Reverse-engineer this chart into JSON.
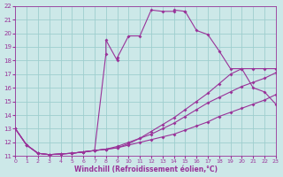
{
  "xlabel": "Windchill (Refroidissement éolien,°C)",
  "bg_color": "#cce8e8",
  "grid_color": "#9ecece",
  "line_color": "#993399",
  "xlim": [
    0,
    23
  ],
  "ylim": [
    11,
    22
  ],
  "xticks": [
    0,
    1,
    2,
    3,
    4,
    5,
    6,
    7,
    8,
    9,
    10,
    11,
    12,
    13,
    14,
    15,
    16,
    17,
    18,
    19,
    20,
    21,
    22,
    23
  ],
  "yticks": [
    11,
    12,
    13,
    14,
    15,
    16,
    17,
    18,
    19,
    20,
    21,
    22
  ],
  "series": [
    {
      "x": [
        0,
        1,
        2,
        3,
        4,
        5,
        6,
        7,
        8,
        8,
        9,
        9,
        10,
        11,
        12,
        13,
        14,
        14,
        15,
        15,
        16,
        17,
        18,
        19,
        20,
        21,
        22,
        23
      ],
      "y": [
        13,
        11.8,
        11.2,
        11.1,
        11.15,
        11.2,
        11.3,
        11.4,
        18.5,
        19.5,
        18.0,
        18.2,
        19.8,
        19.8,
        21.7,
        21.6,
        21.6,
        21.7,
        21.6,
        21.6,
        20.2,
        19.9,
        18.7,
        17.4,
        17.4,
        17.4,
        17.4,
        17.4
      ]
    },
    {
      "x": [
        0,
        1,
        2,
        3,
        4,
        5,
        6,
        7,
        8,
        9,
        10,
        11,
        12,
        13,
        14,
        15,
        16,
        17,
        18,
        19,
        20,
        21,
        22,
        23
      ],
      "y": [
        13,
        11.8,
        11.2,
        11.1,
        11.15,
        11.2,
        11.3,
        11.4,
        11.5,
        11.6,
        11.9,
        12.3,
        12.8,
        13.3,
        13.8,
        14.4,
        15.0,
        15.6,
        16.3,
        17.0,
        17.4,
        16.0,
        15.7,
        14.8
      ]
    },
    {
      "x": [
        0,
        1,
        2,
        3,
        4,
        5,
        6,
        7,
        8,
        9,
        10,
        11,
        12,
        13,
        14,
        15,
        16,
        17,
        18,
        19,
        20,
        21,
        22,
        23
      ],
      "y": [
        13,
        11.8,
        11.2,
        11.1,
        11.15,
        11.2,
        11.3,
        11.4,
        11.5,
        11.7,
        12.0,
        12.3,
        12.6,
        13.0,
        13.4,
        13.9,
        14.4,
        14.9,
        15.3,
        15.7,
        16.1,
        16.4,
        16.7,
        17.1
      ]
    },
    {
      "x": [
        0,
        1,
        2,
        3,
        4,
        5,
        6,
        7,
        8,
        9,
        10,
        11,
        12,
        13,
        14,
        15,
        16,
        17,
        18,
        19,
        20,
        21,
        22,
        23
      ],
      "y": [
        13,
        11.8,
        11.2,
        11.1,
        11.15,
        11.2,
        11.3,
        11.4,
        11.5,
        11.6,
        11.8,
        12.0,
        12.2,
        12.4,
        12.6,
        12.9,
        13.2,
        13.5,
        13.9,
        14.2,
        14.5,
        14.8,
        15.1,
        15.5
      ]
    }
  ],
  "marker": "D",
  "markersize": 2.0,
  "linewidth": 0.8
}
